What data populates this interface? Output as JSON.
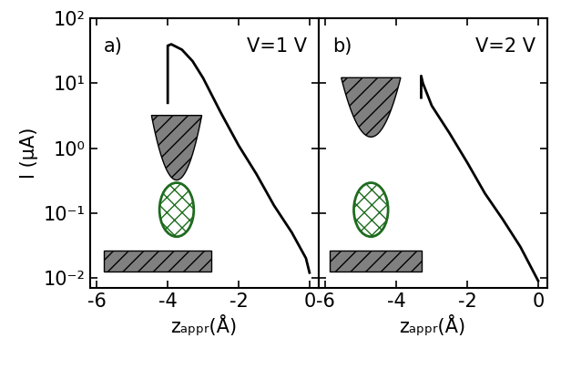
{
  "chart_data": [
    {
      "type": "line",
      "annotations": [
        "a)",
        "V=1 V"
      ],
      "x_label": "zₐₚₚᵣ(Å)",
      "y_label": "I (μA)",
      "x": [
        0.0,
        -0.1,
        -0.5,
        -1.0,
        -1.5,
        -2.0,
        -2.5,
        -3.0,
        -3.3,
        -3.6,
        -3.9,
        -4.0,
        -4.0
      ],
      "values": [
        0.012,
        0.02,
        0.05,
        0.13,
        0.4,
        1.1,
        3.5,
        12,
        22,
        33,
        40,
        38,
        5
      ],
      "color": "#000000",
      "log": "y",
      "xlim": [
        -6.2,
        0.25
      ],
      "xticks": [
        -6,
        -4,
        -2,
        0
      ],
      "ylim": [
        0.007,
        100
      ],
      "yticks": [
        {
          "value": 0.01,
          "label": "10⁻²"
        },
        {
          "value": 0.1,
          "label": "10⁻¹"
        },
        {
          "value": 1,
          "label": "10⁰"
        },
        {
          "value": 10,
          "label": "10¹"
        },
        {
          "value": 100,
          "label": "10²"
        }
      ]
    },
    {
      "type": "line",
      "annotations": [
        "b)",
        "V=2 V"
      ],
      "x_label": "zₐₚₚᵣ(Å)",
      "x": [
        0.0,
        -0.5,
        -1.0,
        -1.5,
        -2.0,
        -2.5,
        -3.0,
        -3.25,
        -3.3,
        -3.3
      ],
      "values": [
        0.009,
        0.03,
        0.08,
        0.2,
        0.6,
        1.7,
        4.5,
        10,
        13,
        6
      ],
      "color": "#000000",
      "log": "y",
      "tick_labels": "x",
      "xlim": [
        -6.2,
        0.25
      ],
      "xticks": [
        -6,
        -4,
        -2,
        0
      ],
      "ylim": [
        0.007,
        100
      ],
      "yticks": [
        {
          "value": 0.01,
          "label": "10⁻²"
        },
        {
          "value": 0.1,
          "label": "10⁻¹"
        },
        {
          "value": 1,
          "label": "10⁰"
        },
        {
          "value": 10,
          "label": "10¹"
        },
        {
          "value": 100,
          "label": "10²"
        }
      ]
    }
  ]
}
